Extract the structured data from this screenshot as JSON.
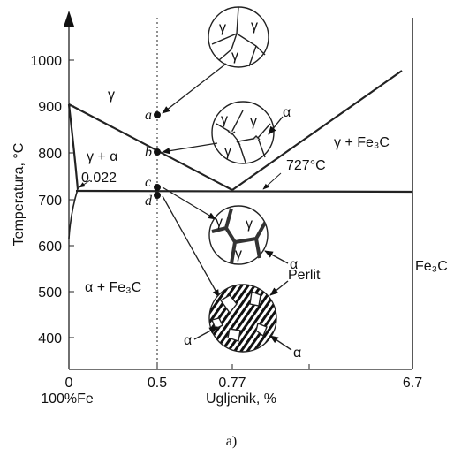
{
  "axes": {
    "y_label": "Temperatura, °C",
    "x_label": "Ugljenik, %",
    "y_ticks": [
      "1000",
      "900",
      "800",
      "700",
      "600",
      "500",
      "400"
    ],
    "x_ticks": [
      "0",
      "0.5",
      "0.77",
      "6.7"
    ],
    "x_origin_note": "100%Fe"
  },
  "regions": {
    "gamma": "γ",
    "gamma_alpha": "γ + α",
    "alpha_fe3c": "α + Fe₃C",
    "gamma_fe3c": "γ + Fe₃C",
    "fe3c": "Fe₃C"
  },
  "annotations": {
    "solubility": "0.022",
    "eutectoid": "727°C"
  },
  "points": [
    "a",
    "b",
    "c",
    "d"
  ],
  "micro": {
    "m1": [
      "γ",
      "γ",
      "γ"
    ],
    "m2": [
      "γ",
      "γ",
      "γ",
      "α"
    ],
    "m3": [
      "γ",
      "γ",
      "γ",
      "α"
    ],
    "m4": [
      "Perlit",
      "α",
      "α"
    ]
  },
  "caption": "a)"
}
